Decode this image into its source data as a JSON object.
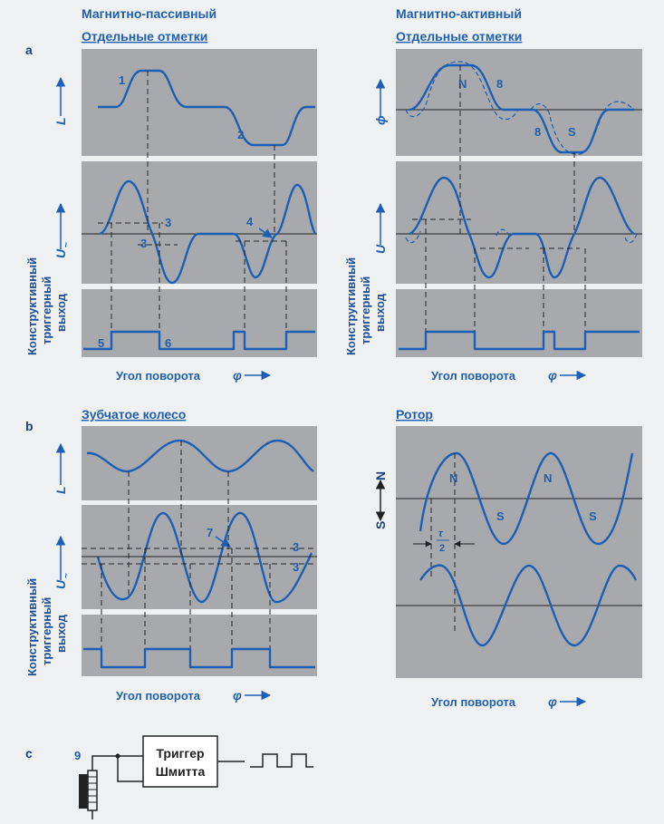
{
  "sections": {
    "a": "a",
    "b": "b",
    "c": "c"
  },
  "a_left": {
    "title": "Магнитно-пассивный",
    "subtitle": "Отдельные отметки",
    "y1": "L",
    "y2": "U",
    "y2_sub": "~",
    "labels": {
      "n1": "1",
      "n2": "2",
      "n3a": "3",
      "n3b": "3",
      "n4": "4",
      "n5": "5",
      "n6": "6"
    },
    "x_axis": "Угол поворота",
    "phi": "φ"
  },
  "a_right": {
    "title": "Магнитно-активный",
    "subtitle": "Отдельные отметки",
    "y1": "ϕ",
    "y2": "U",
    "labels": {
      "N": "N",
      "S": "S",
      "n8a": "8",
      "n8b": "8"
    },
    "x_axis": "Угол поворота",
    "phi": "φ"
  },
  "b_left": {
    "subtitle": "Зубчатое колесо",
    "y1": "L",
    "y2": "U",
    "y2_sub": "~",
    "labels": {
      "n7": "7",
      "n3a": "3",
      "n3b": "3"
    },
    "x_axis": "Угол поворота",
    "phi": "φ"
  },
  "b_right": {
    "subtitle": "Ротор",
    "labels": {
      "N1": "N",
      "N2": "N",
      "S1": "S",
      "S2": "S",
      "axisN": "N",
      "axisS": "S",
      "tau": "τ",
      "two": "2"
    },
    "x_axis": "Угол поворота",
    "phi": "φ"
  },
  "side_label": [
    "Конструктивный",
    "триггерный",
    "выход"
  ],
  "c": {
    "label9": "9",
    "trigger_line1": "Триггер",
    "trigger_line2": "Шмитта"
  },
  "colors": {
    "wave": "#1d5fb4",
    "panel": "#a7a9ac",
    "text": "#1f5fae"
  }
}
